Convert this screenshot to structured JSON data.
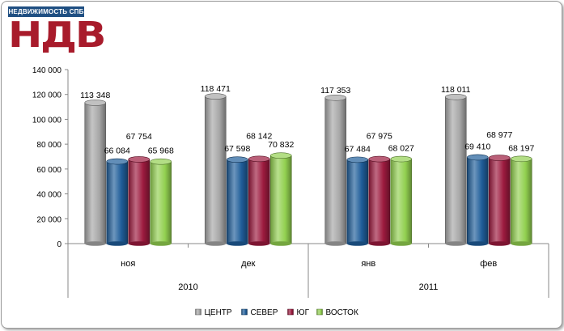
{
  "logo": {
    "brand_text": "НЕДВИЖИМОСТЬ СПБ",
    "mark_text": "НДВ",
    "brand_color": "#1f4f82",
    "mark_color": "#a81b2b"
  },
  "chart_data": {
    "type": "bar",
    "title": "",
    "xlabel": "",
    "ylabel": "",
    "ylim": [
      0,
      140000
    ],
    "yticks": [
      0,
      20000,
      40000,
      60000,
      80000,
      100000,
      120000,
      140000
    ],
    "ytick_labels": [
      "0",
      "20 000",
      "40 000",
      "60 000",
      "80 000",
      "100 000",
      "120 000",
      "140 000"
    ],
    "categories": [
      "ноя",
      "дек",
      "янв",
      "фев"
    ],
    "groups": [
      {
        "label": "2010",
        "categories": [
          "ноя",
          "дек"
        ]
      },
      {
        "label": "2011",
        "categories": [
          "янв",
          "фев"
        ]
      }
    ],
    "series": [
      {
        "name": "ЦЕНТР",
        "color": "#a6a6a6",
        "values": [
          113348,
          118471,
          117353,
          118011
        ],
        "labels": [
          "113 348",
          "118 471",
          "117 353",
          "118 011"
        ]
      },
      {
        "name": "СЕВЕР",
        "color": "#1f5d99",
        "values": [
          66084,
          67598,
          67484,
          69410
        ],
        "labels": [
          "66 084",
          "67 598",
          "67 484",
          "69 410"
        ]
      },
      {
        "name": "ЮГ",
        "color": "#9c1a3e",
        "values": [
          67754,
          68142,
          67975,
          68977
        ],
        "labels": [
          "67 754",
          "68 142",
          "67 975",
          "68 977"
        ]
      },
      {
        "name": "ВОСТОК",
        "color": "#92d050",
        "values": [
          65968,
          70832,
          68027,
          68197
        ],
        "labels": [
          "65 968",
          "70 832",
          "68 027",
          "68 197"
        ]
      }
    ],
    "grid": false,
    "legend_position": "bottom",
    "style": "3d-cylinder"
  }
}
